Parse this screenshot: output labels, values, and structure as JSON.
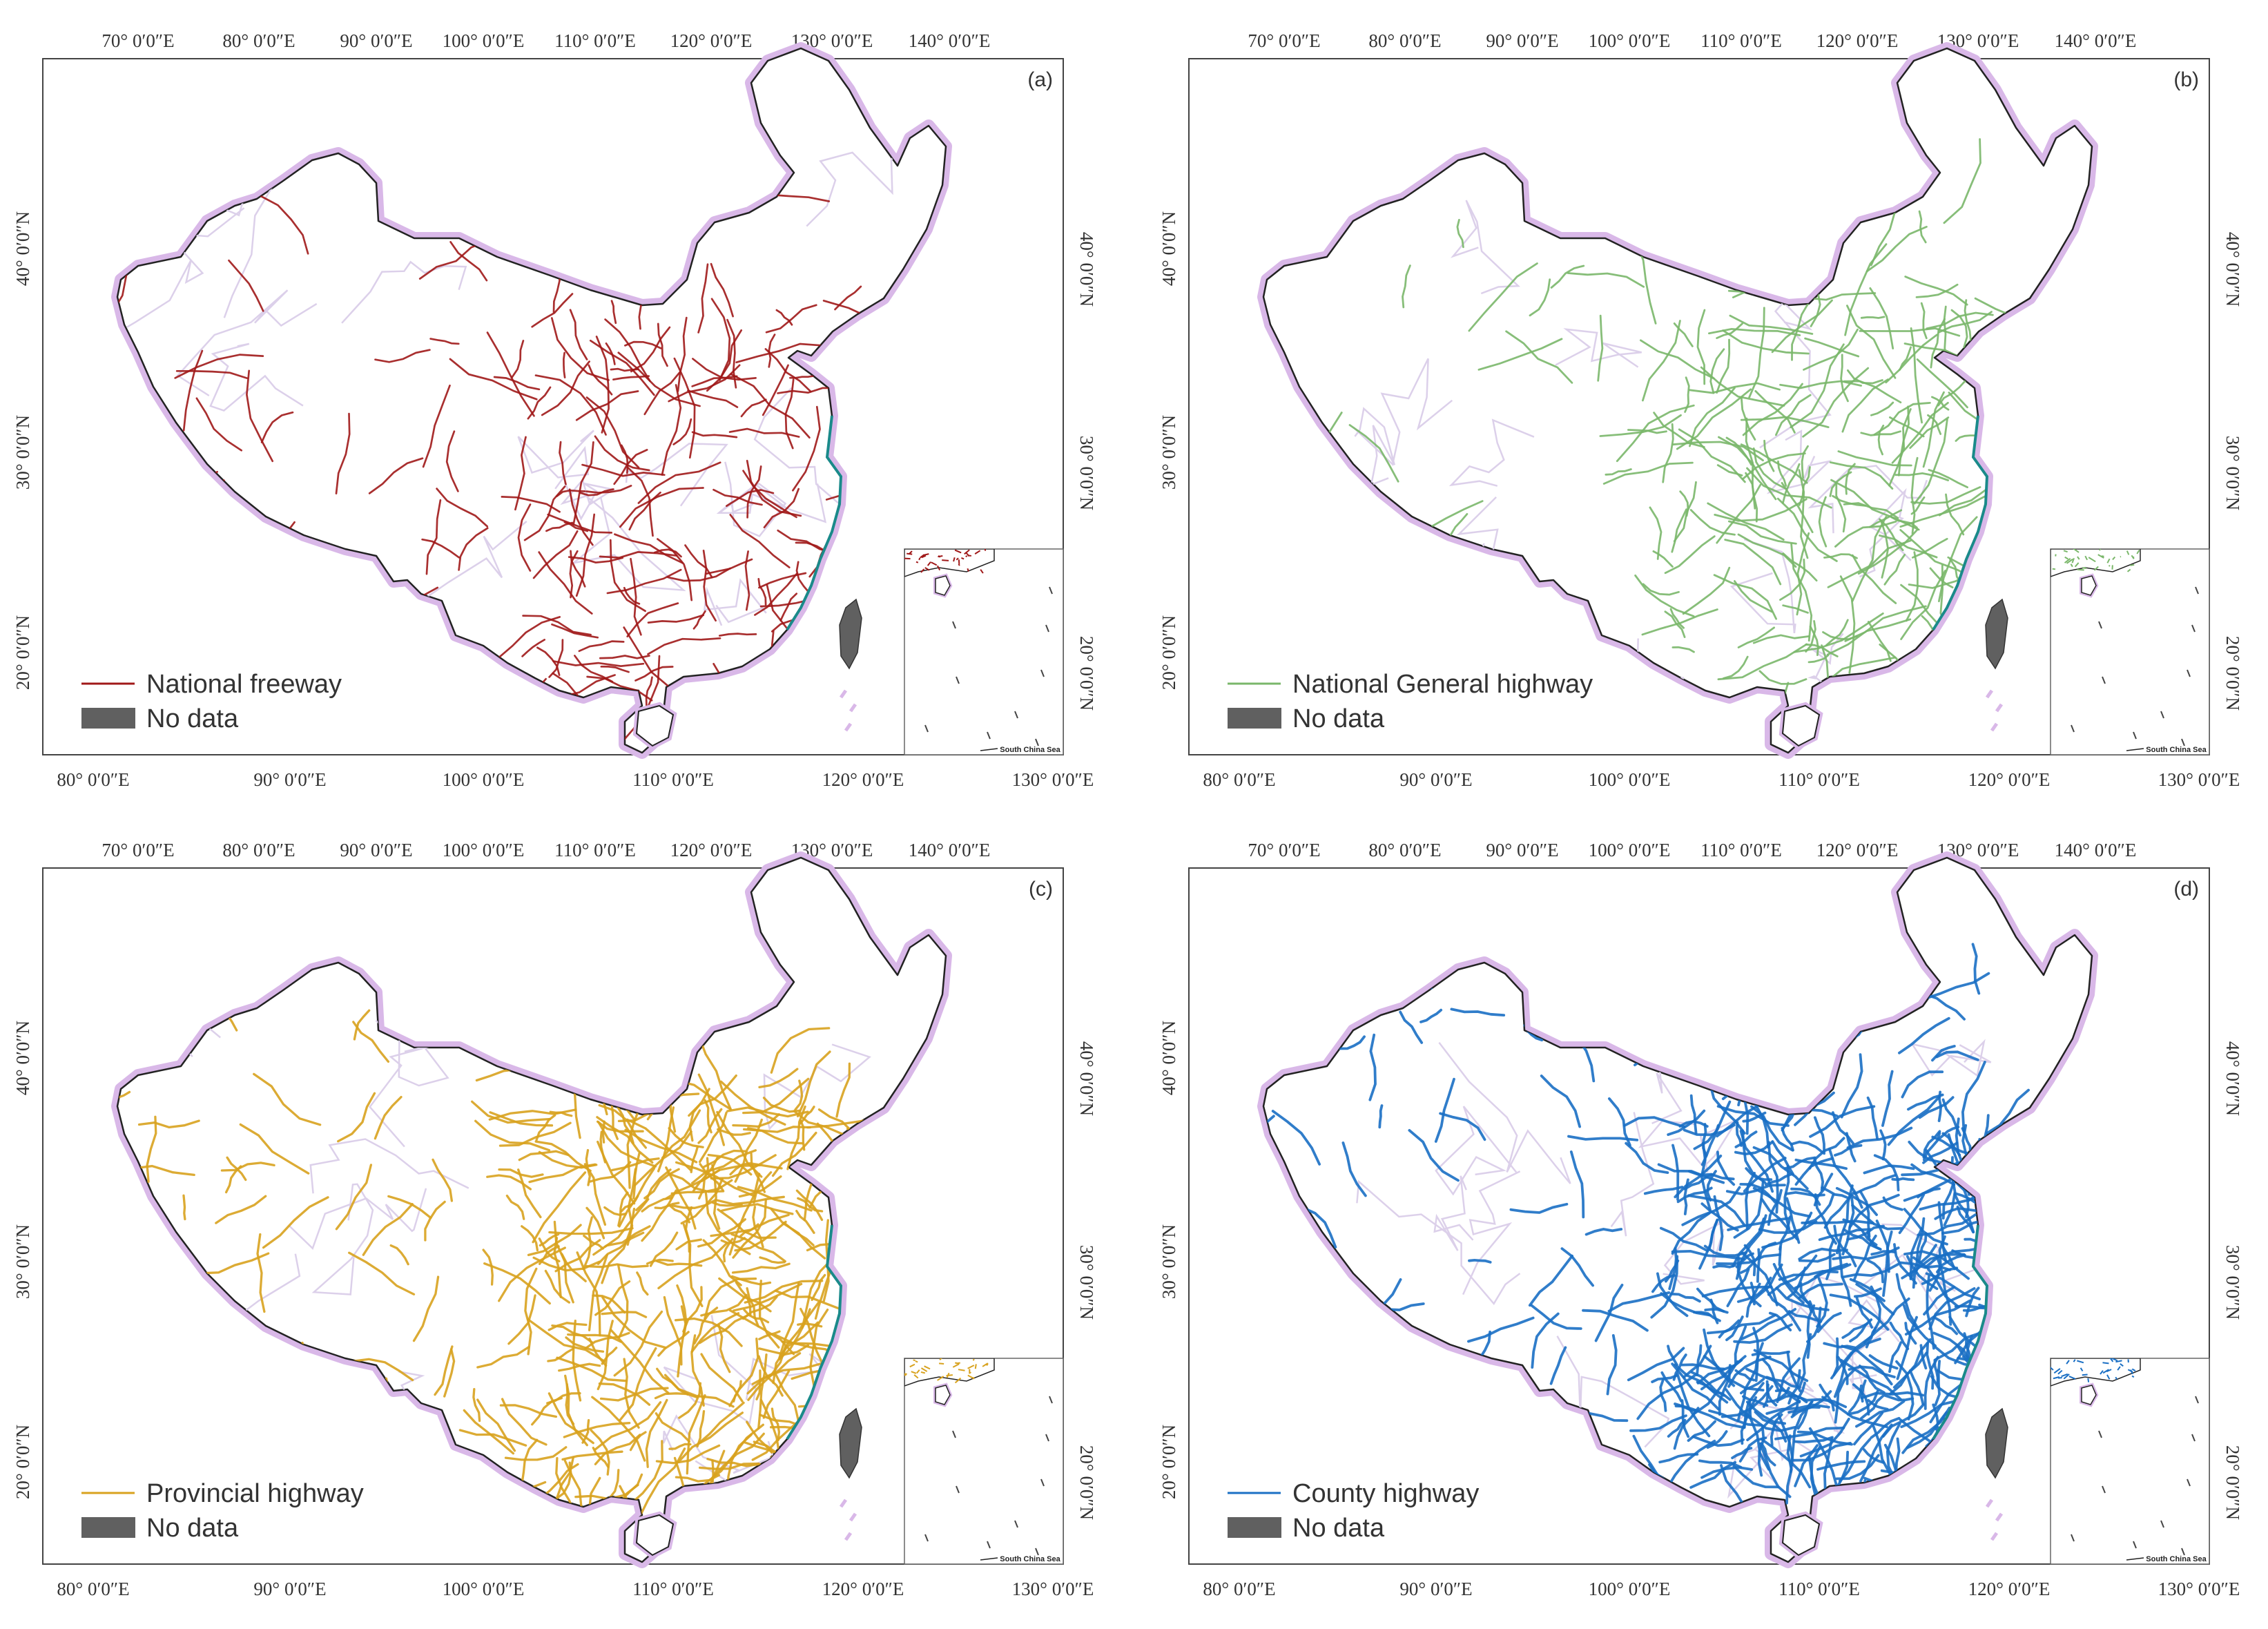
{
  "panels": [
    {
      "id": "a",
      "label": "(a)",
      "road_color": "#a01818",
      "density": 0.25,
      "legend": {
        "road": "National freeway",
        "nodata": "No data"
      }
    },
    {
      "id": "b",
      "label": "(b)",
      "road_color": "#7ab76a",
      "density": 0.32,
      "legend": {
        "road": "National General highway",
        "nodata": "No data"
      }
    },
    {
      "id": "c",
      "label": "(c)",
      "road_color": "#d8a21e",
      "density": 0.6,
      "legend": {
        "road": "Provincial highway",
        "nodata": "No data"
      }
    },
    {
      "id": "d",
      "label": "(d)",
      "road_color": "#1a6fc4",
      "density": 0.9,
      "legend": {
        "road": "County highway",
        "nodata": "No data"
      }
    }
  ],
  "axes": {
    "top_ticks": [
      "70° 0′0″E",
      "80° 0′0″E",
      "90° 0′0″E",
      "100° 0′0″E",
      "110° 0′0″E",
      "120° 0′0″E",
      "130° 0′0″E",
      "140° 0′0″E"
    ],
    "bottom_ticks": [
      "80° 0′0″E",
      "90° 0′0″E",
      "100° 0′0″E",
      "110° 0′0″E",
      "120° 0′0″E",
      "130° 0′0″E"
    ],
    "side_ticks": [
      "40° 0′0″N",
      "30° 0′0″N",
      "20° 0′0″N"
    ]
  },
  "inset": {
    "caption": "South China Sea"
  },
  "colors": {
    "border_glow": "#d9b8e8",
    "border": "#222222",
    "nodata": "#606060",
    "province_lines": "#dcd0ea",
    "coast": "#1a8a8a"
  }
}
